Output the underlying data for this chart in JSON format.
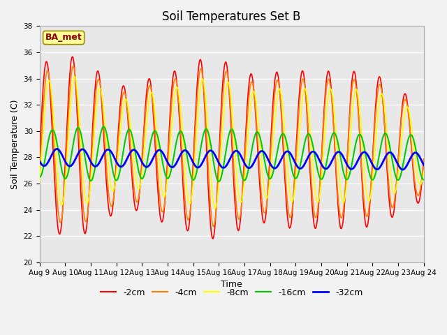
{
  "title": "Soil Temperatures Set B",
  "xlabel": "Time",
  "ylabel": "Soil Temperature (C)",
  "ylim": [
    20,
    38
  ],
  "n_days": 15,
  "x_tick_labels": [
    "Aug 9",
    "Aug 10",
    "Aug 11",
    "Aug 12",
    "Aug 13",
    "Aug 14",
    "Aug 15",
    "Aug 16",
    "Aug 17",
    "Aug 18",
    "Aug 19",
    "Aug 20",
    "Aug 21",
    "Aug 22",
    "Aug 23",
    "Aug 24"
  ],
  "annotation_text": "BA_met",
  "annotation_color": "#8B0000",
  "annotation_bg": "#FFFF99",
  "annotation_border": "#9B8B00",
  "fig_bg": "#F2F2F2",
  "plot_bg": "#E8E8E8",
  "legend_items": [
    "-2cm",
    "-4cm",
    "-8cm",
    "-16cm",
    "-32cm"
  ],
  "line_colors": [
    "#FF0000",
    "#FF8000",
    "#FFFF00",
    "#00CC00",
    "#0000FF"
  ],
  "line_widths": [
    1.2,
    1.2,
    1.2,
    1.5,
    2.0
  ],
  "grid_color": "#FFFFFF",
  "title_fontsize": 12,
  "tick_fontsize": 7.5,
  "label_fontsize": 9,
  "legend_fontsize": 9
}
